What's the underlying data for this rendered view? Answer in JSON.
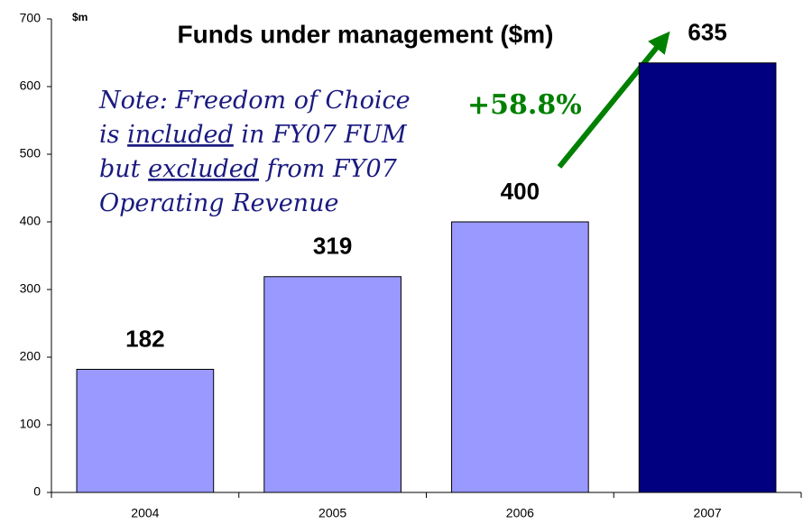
{
  "chart_data": {
    "type": "bar",
    "title": "Funds under management ($m)",
    "y_label": "$m",
    "categories": [
      "2004",
      "2005",
      "2006",
      "2007"
    ],
    "values": [
      182,
      319,
      400,
      635
    ],
    "colors": [
      "#9999ff",
      "#9999ff",
      "#9999ff",
      "#000080"
    ],
    "ylim": [
      0,
      700
    ],
    "yticks": [
      0,
      100,
      200,
      300,
      400,
      500,
      600,
      700
    ],
    "note_lines": [
      [
        {
          "text": "Note: Freedom of Choice"
        }
      ],
      [
        {
          "text": "is "
        },
        {
          "text": "included",
          "underline": true
        },
        {
          "text": " in FY07 FUM"
        }
      ],
      [
        {
          "text": "but "
        },
        {
          "text": "excluded",
          "underline": true
        },
        {
          "text": " from FY07"
        }
      ],
      [
        {
          "text": "Operating Revenue"
        }
      ]
    ],
    "growth_label": "+58.8%"
  }
}
